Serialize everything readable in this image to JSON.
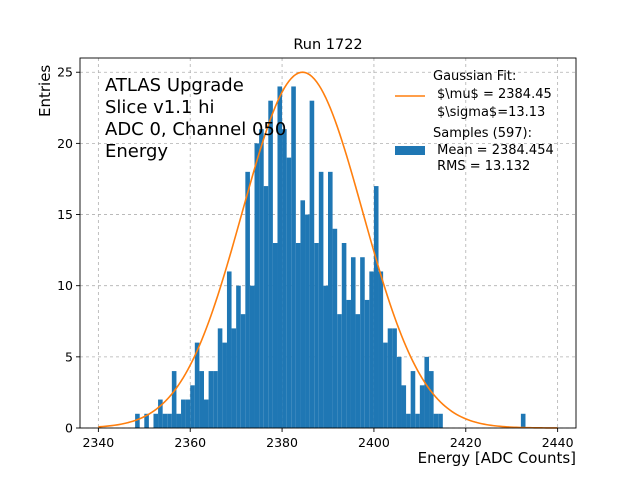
{
  "chart_data": {
    "type": "bar",
    "title": "Run 1722",
    "xlabel": "Energy [ADC Counts]",
    "ylabel": "Entries",
    "xlim": [
      2336,
      2444
    ],
    "ylim": [
      0,
      26
    ],
    "xticks": [
      2340,
      2360,
      2380,
      2400,
      2420,
      2440
    ],
    "yticks": [
      0,
      5,
      10,
      15,
      20,
      25
    ],
    "grid": true,
    "bin_width": 1,
    "bins_x": [
      2348,
      2350,
      2352,
      2353,
      2354,
      2355,
      2356,
      2357,
      2358,
      2359,
      2360,
      2361,
      2362,
      2363,
      2364,
      2365,
      2366,
      2367,
      2368,
      2369,
      2370,
      2371,
      2372,
      2373,
      2374,
      2375,
      2376,
      2377,
      2378,
      2379,
      2380,
      2381,
      2382,
      2383,
      2384,
      2385,
      2386,
      2387,
      2388,
      2389,
      2390,
      2391,
      2392,
      2393,
      2394,
      2395,
      2396,
      2397,
      2398,
      2399,
      2400,
      2401,
      2402,
      2403,
      2404,
      2405,
      2406,
      2407,
      2408,
      2409,
      2410,
      2411,
      2412,
      2413,
      2414,
      2432
    ],
    "bins_y": [
      1,
      1,
      1,
      2,
      1,
      1,
      4,
      1,
      2,
      2,
      3,
      6,
      4,
      2,
      4,
      4,
      7,
      6,
      11,
      7,
      10,
      8,
      18,
      10,
      20,
      21,
      17,
      23,
      13,
      24,
      21,
      19,
      24,
      13,
      16,
      15,
      23,
      13,
      18,
      10,
      18,
      14,
      8,
      13,
      9,
      12,
      8,
      12,
      9,
      11,
      17,
      11,
      6,
      7,
      7,
      5,
      3,
      1,
      4,
      1,
      3,
      5,
      4,
      1,
      1,
      1
    ],
    "annotation_lines": [
      "ATLAS Upgrade",
      "Slice v1.1 hi",
      "ADC 0, Channel 050",
      "Energy"
    ],
    "fit": {
      "type": "gaussian",
      "mu": 2384.45,
      "sigma": 13.13,
      "amplitude": 25,
      "x_range": [
        2340,
        2440
      ]
    },
    "legend": {
      "location": "upper right",
      "fit_label_lines": [
        "Gaussian Fit:",
        "$\\mu$ = 2384.45",
        "$\\sigma$=13.13"
      ],
      "samples_label_lines": [
        "Samples (597):",
        " Mean = 2384.454",
        " RMS = 13.132"
      ]
    },
    "colors": {
      "bars": "#1f77b4",
      "fit_line": "#ff7f0e",
      "grid": "#b0b0b0",
      "axes": "#000000"
    }
  }
}
